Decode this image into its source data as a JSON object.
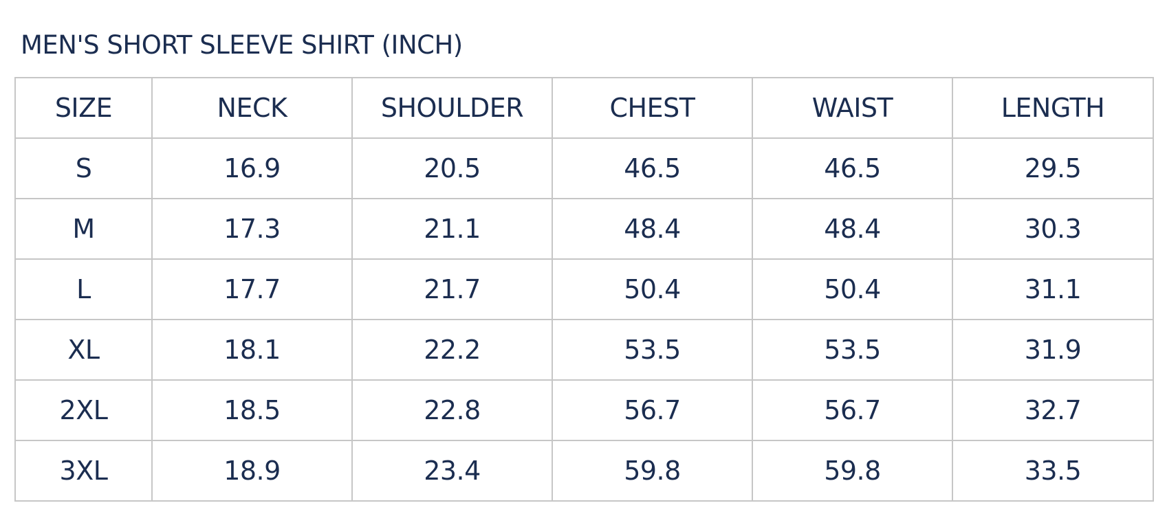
{
  "title": "MEN'S SHORT SLEEVE SHIRT (INCH)",
  "table": {
    "headers": [
      "SIZE",
      "NECK",
      "SHOULDER",
      "CHEST",
      "WAIST",
      "LENGTH"
    ],
    "rows": [
      [
        "S",
        "16.9",
        "20.5",
        "46.5",
        "46.5",
        "29.5"
      ],
      [
        "M",
        "17.3",
        "21.1",
        "48.4",
        "48.4",
        "30.3"
      ],
      [
        "L",
        "17.7",
        "21.7",
        "50.4",
        "50.4",
        "31.1"
      ],
      [
        "XL",
        "18.1",
        "22.2",
        "53.5",
        "53.5",
        "31.9"
      ],
      [
        "2XL",
        "18.5",
        "22.8",
        "56.7",
        "56.7",
        "32.7"
      ],
      [
        "3XL",
        "18.9",
        "23.4",
        "59.8",
        "59.8",
        "33.5"
      ]
    ]
  },
  "colors": {
    "text": "#1b2d50",
    "border": "#c6c6c6"
  }
}
